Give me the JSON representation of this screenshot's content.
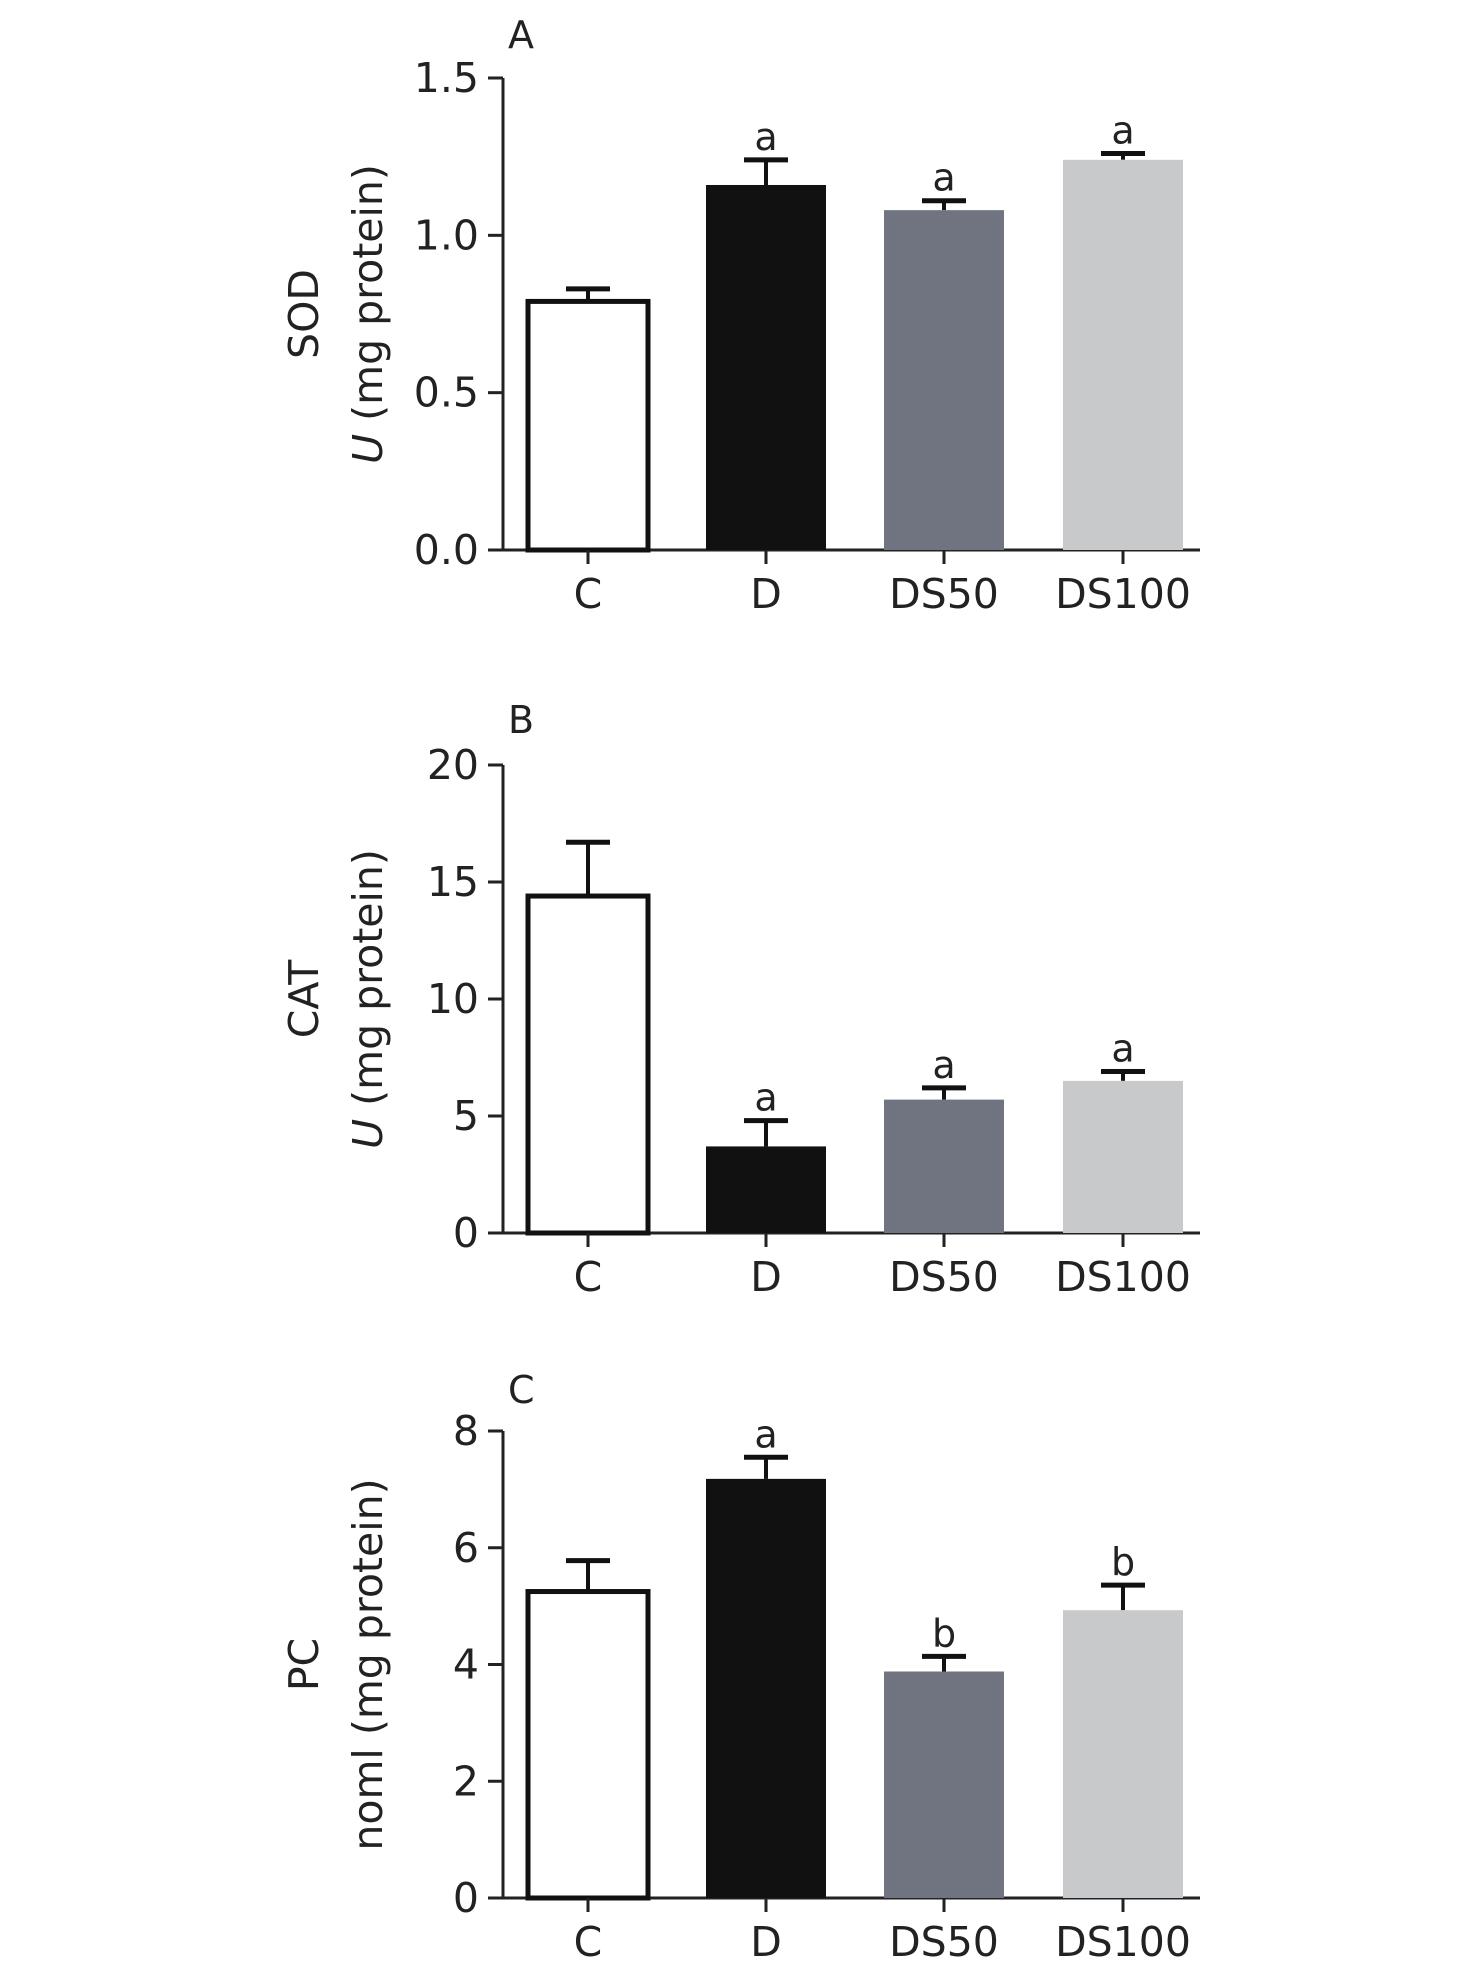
{
  "figure": {
    "colors": {
      "C": "#ffffff",
      "D": "#111111",
      "DS50": "#707480",
      "DS100": "#c8c9cb",
      "outline": "#111111"
    }
  },
  "chart_data": [
    {
      "type": "bar",
      "panel_label": "A",
      "categories": [
        "C",
        "D",
        "DS50",
        "DS100"
      ],
      "values": [
        0.79,
        1.16,
        1.08,
        1.24
      ],
      "error": [
        0.04,
        0.08,
        0.03,
        0.02
      ],
      "significance": [
        "",
        "a",
        "a",
        "a"
      ],
      "ylabel_line1": "SOD",
      "ylabel_line2_italic": "U",
      "ylabel_line2_rest": " (mg protein)",
      "ylim": [
        0,
        1.5
      ],
      "yticks": [
        0.0,
        0.5,
        1.0,
        1.5
      ],
      "ytick_labels": [
        "0.0",
        "0.5",
        "1.0",
        "1.5"
      ],
      "grid": false
    },
    {
      "type": "bar",
      "panel_label": "B",
      "categories": [
        "C",
        "D",
        "DS50",
        "DS100"
      ],
      "values": [
        14.4,
        3.7,
        5.7,
        6.5
      ],
      "error": [
        2.3,
        1.1,
        0.5,
        0.4
      ],
      "significance": [
        "",
        "a",
        "a",
        "a"
      ],
      "ylabel_line1": "CAT",
      "ylabel_line2_italic": "U",
      "ylabel_line2_rest": " (mg protein)",
      "ylim": [
        0,
        20
      ],
      "yticks": [
        0,
        5,
        10,
        15,
        20
      ],
      "ytick_labels": [
        "0",
        "5",
        "10",
        "15",
        "20"
      ],
      "grid": false
    },
    {
      "type": "bar",
      "panel_label": "C",
      "categories": [
        "C",
        "D",
        "DS50",
        "DS100"
      ],
      "values": [
        5.25,
        7.18,
        3.88,
        4.93
      ],
      "error": [
        0.53,
        0.37,
        0.26,
        0.43
      ],
      "significance": [
        "",
        "a",
        "b",
        "b"
      ],
      "ylabel_line1": "PC",
      "ylabel_line2_italic": "",
      "ylabel_line2_rest": "noml (mg protein)",
      "ylim": [
        0,
        8
      ],
      "yticks": [
        0,
        2,
        4,
        6,
        8
      ],
      "ytick_labels": [
        "0",
        "2",
        "4",
        "6",
        "8"
      ],
      "grid": false
    }
  ]
}
